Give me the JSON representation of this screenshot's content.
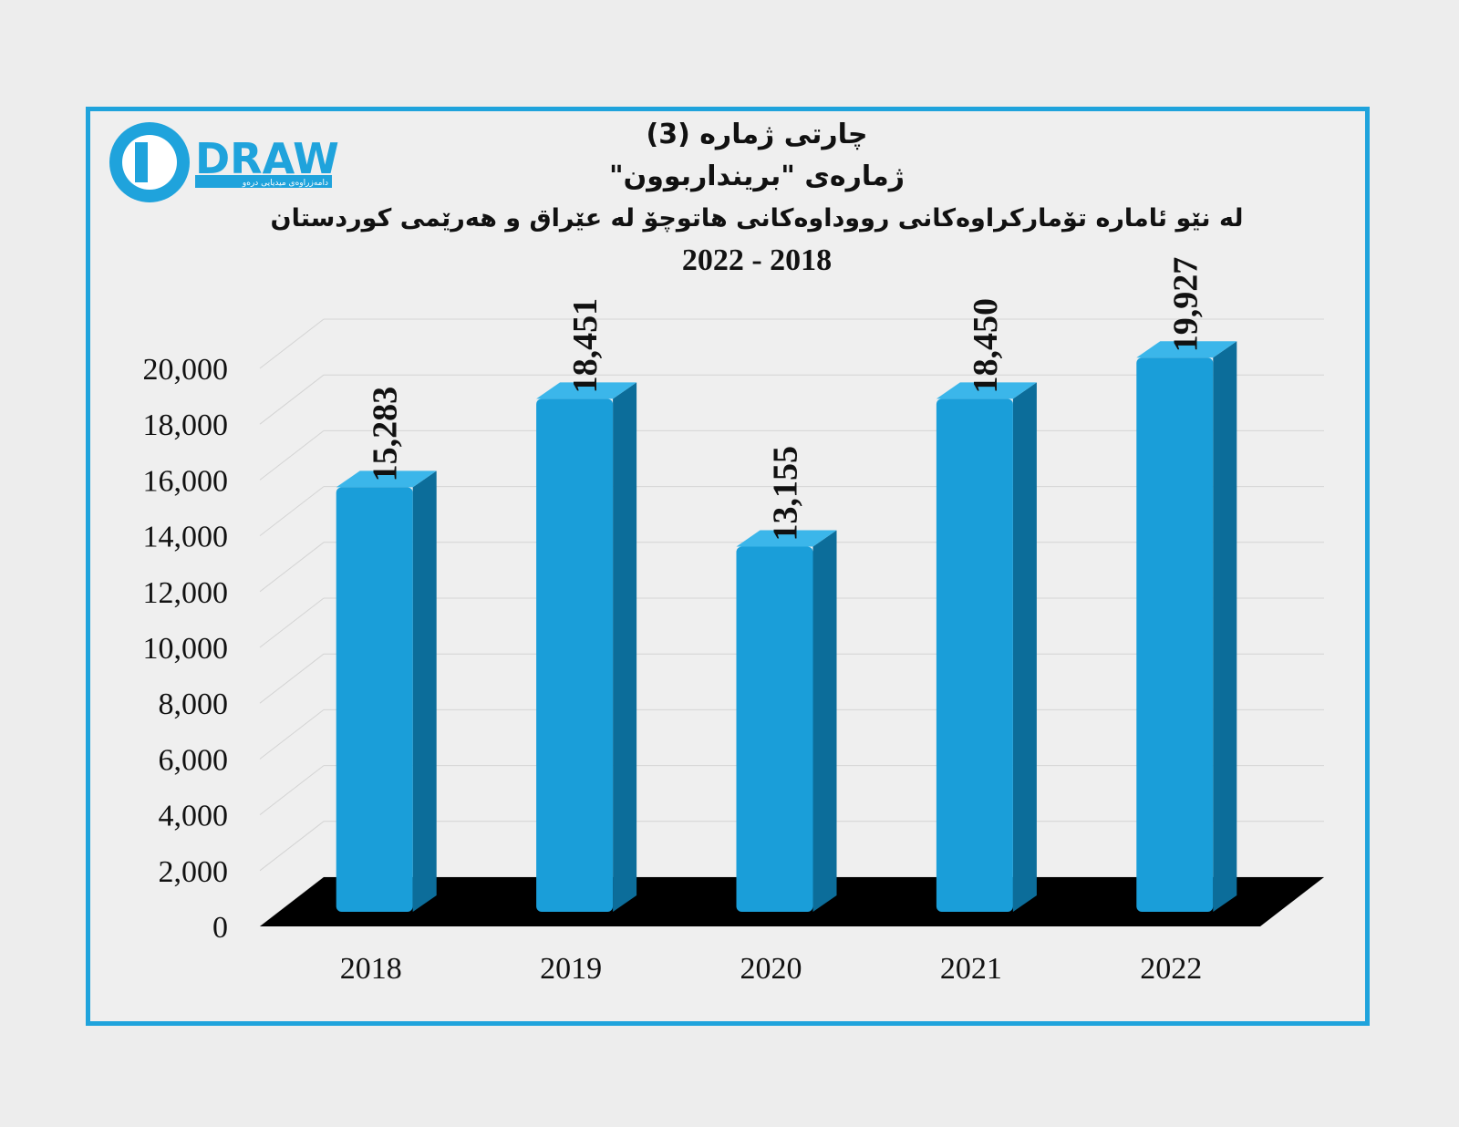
{
  "logo": {
    "wordmark": "DRAW",
    "tagline": "دامەزراوەی میدیایی درەو"
  },
  "colors": {
    "frame": "#1fa3dc",
    "bar_front": "#1a9ed9",
    "bar_side": "#0c6d9a",
    "bar_top": "#3bb6ea",
    "floor": "#000000"
  },
  "chart_data": {
    "type": "bar",
    "title_lines": [
      "چارتی ژمارە (3)",
      "ژمارەی \"بریندار‌بوون\"",
      "لە نێو ئامارە تۆمارکراوەکانی رووداوەکانی هاتوچۆ لە عێراق و هەرێمی کوردستان",
      "2022 - 2018"
    ],
    "categories": [
      "2018",
      "2019",
      "2020",
      "2021",
      "2022"
    ],
    "values": [
      15283,
      18451,
      13155,
      18450,
      19927
    ],
    "data_labels": [
      "15,283",
      "18,451",
      "13,155",
      "18,450",
      "19,927"
    ],
    "y_ticks": [
      "0",
      "2,000",
      "4,000",
      "6,000",
      "8,000",
      "10,000",
      "12,000",
      "14,000",
      "16,000",
      "18,000",
      "20,000"
    ],
    "ylim": [
      0,
      20000
    ],
    "xlabel": "",
    "ylabel": "",
    "grid": true,
    "style": "3d"
  }
}
